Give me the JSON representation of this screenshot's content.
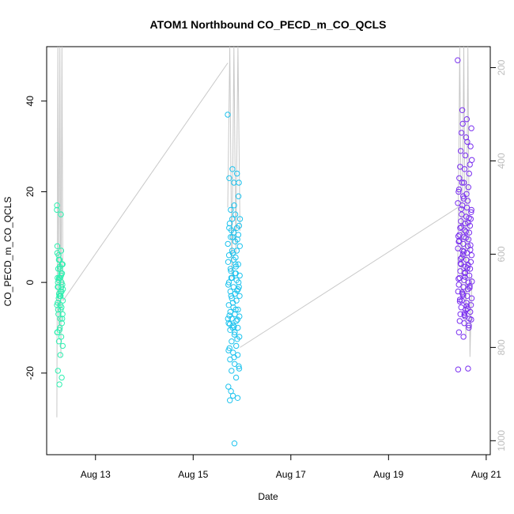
{
  "chart_data": {
    "type": "scatter",
    "title": "ATOM1 Northbound CO_PECD_m_CO_QCLS",
    "xlabel": "Date",
    "ylabel": "CO_PECD_m_CO_QCLS",
    "x_ticks": [
      "Aug 13",
      "Aug 15",
      "Aug 17",
      "Aug 19",
      "Aug 21"
    ],
    "y_ticks": [
      -20,
      0,
      20,
      40
    ],
    "y2_ticks": [
      200,
      400,
      600,
      800,
      1000
    ],
    "xlim": [
      "2016-08-12T00:00",
      "2016-08-21T02:00"
    ],
    "ylim": [
      -38,
      52
    ],
    "y2lim": [
      1030,
      155
    ],
    "grid": false,
    "colors": {
      "series1": "#2ef0b0",
      "series2": "#1ec3ee",
      "series3": "#7a2ff0",
      "profile_line": "#c8c8c8"
    },
    "series": [
      {
        "color": "#2ef0b0",
        "x_range": [
          "2016-08-12T05:00",
          "2016-08-12T08:00"
        ],
        "y": [
          16,
          -3,
          -1,
          2,
          3.5,
          8,
          7,
          5,
          4,
          1,
          0,
          -2,
          -3,
          -5,
          -6,
          -7,
          -8,
          -10,
          -11,
          -12,
          -13,
          -14,
          -16,
          -19.5,
          -21,
          -22.5,
          17,
          15,
          6,
          4,
          3,
          1,
          -1,
          -2.5,
          -4,
          -5,
          -6,
          -9,
          -10.5,
          -11,
          2,
          0.5,
          -0.5,
          -3,
          -4.5,
          -5.5,
          1,
          -1.5,
          -2,
          3,
          4,
          5,
          6.5,
          1.5,
          -3.5,
          -7,
          -8,
          -1,
          0,
          1
        ],
        "profile": [
          [
            "2016-08-12T05:00",
            950
          ],
          [
            "2016-08-12T05:30",
            150
          ],
          [
            "2016-08-12T06:00",
            760
          ],
          [
            "2016-08-12T06:30",
            150
          ],
          [
            "2016-08-12T07:00",
            820
          ],
          [
            "2016-08-12T07:30",
            150
          ],
          [
            "2016-08-12T08:00",
            700
          ]
        ]
      },
      {
        "color": "#1ec3ee",
        "x_range": [
          "2016-08-15T17:00",
          "2016-08-15T23:00"
        ],
        "y": [
          37,
          25,
          24,
          23,
          22,
          19,
          16,
          15,
          14,
          14,
          12,
          12,
          11,
          10.5,
          10,
          9,
          8,
          7,
          7,
          6,
          5,
          4,
          3,
          2,
          1.5,
          1,
          0.5,
          0,
          -1,
          -1.5,
          -2,
          -2.5,
          -3,
          -3.5,
          -4,
          -5,
          -5.5,
          -6,
          -6.5,
          -7,
          -7.5,
          -8,
          -8.5,
          -9,
          -9.5,
          -10,
          -10.5,
          -11,
          -12,
          -13,
          -14,
          -15,
          -15.5,
          -16,
          -17,
          -18,
          -19,
          -19.5,
          -21,
          -23,
          -25,
          -25.5,
          -26,
          -35.5,
          12.5,
          11.5,
          3.5,
          -0.5,
          -4.5,
          -8.2,
          -9.2,
          -11.5,
          -1,
          1,
          2,
          4.5,
          6.5,
          9.5,
          13,
          17,
          22,
          -3,
          -6,
          -8,
          -10,
          -12.5,
          -14.5,
          -16.5,
          -18.5,
          -24,
          5.5,
          8.5,
          10,
          -1.8,
          -7.3,
          -9.8,
          0,
          2.5,
          4
        ],
        "profile": [
          [
            "2016-08-15T17:00",
            500
          ],
          [
            "2016-08-15T18:00",
            150
          ],
          [
            "2016-08-15T19:00",
            650
          ],
          [
            "2016-08-15T20:00",
            150
          ],
          [
            "2016-08-15T21:00",
            600
          ],
          [
            "2016-08-15T22:00",
            150
          ],
          [
            "2016-08-15T23:00",
            550
          ]
        ]
      },
      {
        "color": "#7a2ff0",
        "x_range": [
          "2016-08-20T10:00",
          "2016-08-20T17:00"
        ],
        "y": [
          49,
          38,
          36,
          34,
          33,
          32,
          30,
          29,
          28,
          26,
          25.5,
          25,
          24,
          23,
          22,
          21,
          20,
          19,
          18,
          17.5,
          17,
          16.5,
          16,
          15,
          14.5,
          14,
          13.5,
          13,
          12.5,
          12,
          11.5,
          11,
          10.5,
          10,
          9.5,
          9,
          8.5,
          8,
          7.5,
          7,
          6.5,
          6,
          5.5,
          5,
          4.5,
          4,
          3.5,
          3,
          2.5,
          2,
          1.5,
          1,
          0.5,
          0,
          -0.5,
          -1,
          -1.5,
          -2,
          -2.5,
          -3,
          -3.5,
          -4,
          -4.5,
          -5,
          -5.5,
          -6,
          -6.5,
          -7,
          -7.5,
          -8,
          -8.5,
          -9,
          -10,
          -11,
          -12,
          -19,
          -19.2,
          35,
          31,
          27,
          22,
          19.5,
          15.5,
          12.2,
          9.8,
          7.2,
          4.2,
          1.2,
          -1.2,
          -4.2,
          -7.2,
          -9.5,
          20.5,
          18.5,
          13.2,
          10.2,
          6.2,
          3.2,
          0.2,
          -2.2,
          -5.2,
          -8.2,
          16.2,
          11.2,
          8.2,
          5.2,
          2.2,
          -0.8,
          -3.8,
          -6.8,
          14.2,
          9.2,
          6.8,
          3.8,
          0.8,
          -2.8,
          -5.8
        ],
        "profile": [
          [
            "2016-08-20T10:00",
            650
          ],
          [
            "2016-08-20T11:00",
            150
          ],
          [
            "2016-08-20T12:00",
            700
          ],
          [
            "2016-08-20T13:00",
            150
          ],
          [
            "2016-08-20T14:00",
            780
          ],
          [
            "2016-08-20T15:00",
            150
          ],
          [
            "2016-08-20T16:00",
            820
          ],
          [
            "2016-08-20T17:00",
            650
          ]
        ]
      }
    ],
    "connectors": [
      [
        [
          "2016-08-12T08:00",
          700
        ],
        [
          "2016-08-15T17:00",
          190
        ]
      ],
      [
        [
          "2016-08-15T23:00",
          800
        ],
        [
          "2016-08-20T10:00",
          500
        ]
      ]
    ]
  }
}
